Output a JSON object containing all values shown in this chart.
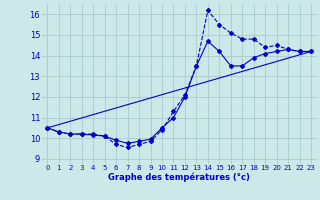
{
  "xlabel": "Graphe des températures (°c)",
  "background_color": "#cce8e8",
  "grid_color": "#aacaca",
  "line_color": "#0000cc",
  "xlim": [
    -0.5,
    23.5
  ],
  "ylim": [
    8.75,
    16.5
  ],
  "xticks": [
    0,
    1,
    2,
    3,
    4,
    5,
    6,
    7,
    8,
    9,
    10,
    11,
    12,
    13,
    14,
    15,
    16,
    17,
    18,
    19,
    20,
    21,
    22,
    23
  ],
  "yticks": [
    9,
    10,
    11,
    12,
    13,
    14,
    15,
    16
  ],
  "curve1_x": [
    0,
    1,
    2,
    3,
    4,
    5,
    6,
    7,
    8,
    9,
    10,
    11,
    12,
    13,
    14,
    15,
    16,
    17,
    18,
    19,
    20,
    21,
    22,
    23
  ],
  "curve1_y": [
    10.5,
    10.3,
    10.2,
    10.2,
    10.2,
    10.1,
    9.7,
    9.55,
    9.7,
    9.85,
    10.4,
    11.3,
    12.1,
    13.5,
    16.2,
    15.5,
    15.1,
    14.8,
    14.8,
    14.4,
    14.5,
    14.3,
    14.2,
    14.2
  ],
  "curve2_x": [
    0,
    1,
    2,
    3,
    4,
    5,
    6,
    7,
    8,
    9,
    10,
    11,
    12,
    13,
    14,
    15,
    16,
    17,
    18,
    19,
    20,
    21,
    22,
    23
  ],
  "curve2_y": [
    10.5,
    10.3,
    10.2,
    10.2,
    10.15,
    10.1,
    9.9,
    9.75,
    9.85,
    9.95,
    10.5,
    11.0,
    12.0,
    13.5,
    14.7,
    14.2,
    13.5,
    13.5,
    13.9,
    14.1,
    14.2,
    14.3,
    14.2,
    14.2
  ],
  "curve3_x": [
    0,
    23
  ],
  "curve3_y": [
    10.5,
    14.2
  ]
}
